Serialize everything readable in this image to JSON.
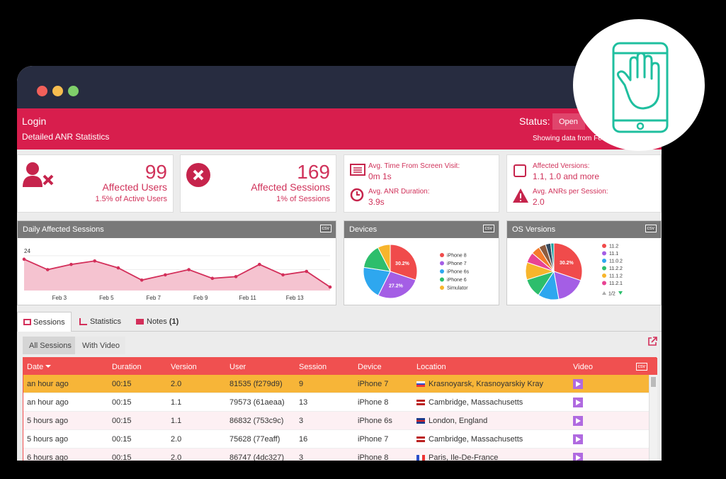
{
  "header": {
    "title": "Login",
    "subtitle": "Detailed ANR Statistics",
    "status_label": "Status:",
    "status": "Open",
    "range": "Showing data from Fe"
  },
  "cards": [
    {
      "value": 99,
      "label": "Affected Users",
      "note": "1.5% of Active Users"
    },
    {
      "value": 169,
      "label": "Affected Sessions",
      "note": "1% of Sessions"
    },
    {
      "items": [
        {
          "label": "Avg. Time From Screen Visit:",
          "value": "0m 1s"
        },
        {
          "label": "Avg. ANR Duration:",
          "value": "3.9s"
        }
      ]
    },
    {
      "items": [
        {
          "label": "Affected Versions:",
          "value": "1.1, 1.0 and more"
        },
        {
          "label": "Avg. ANRs per Session:",
          "value": "2.0"
        }
      ]
    }
  ],
  "export_label": "csv",
  "chart_data": [
    {
      "type": "line",
      "title": "Daily Affected Sessions",
      "categories": [
        null,
        "Feb 3",
        null,
        "Feb 5",
        null,
        "Feb 7",
        null,
        "Feb 9",
        null,
        "Feb 11",
        null,
        "Feb 13",
        null,
        null
      ],
      "values": [
        22,
        16,
        19,
        21,
        17,
        10,
        13,
        16,
        11,
        12,
        19,
        13,
        15,
        6
      ],
      "color": "#d32f5a",
      "ylim": [
        4,
        26
      ],
      "yticks": [
        8,
        16,
        24
      ],
      "grid": true
    },
    {
      "type": "pie",
      "title": "Devices",
      "categories": [
        "iPhone 8",
        "iPhone 7",
        "iPhone 6s",
        "iPhone 6",
        "Simulator"
      ],
      "values": [
        30.2,
        27.2,
        20,
        15,
        7.6
      ],
      "value_labels": [
        "30.2%",
        "27.2%",
        null,
        null,
        null
      ],
      "colors": [
        "#f04b4b",
        "#a45ee5",
        "#2ea7ef",
        "#2dbe6c",
        "#f7b52c"
      ]
    },
    {
      "type": "pie",
      "title": "OS Versions",
      "categories": [
        "11.2",
        "11.1",
        "11.0.2",
        "11.2.2",
        "11.1.2",
        "11.2.1",
        null,
        null,
        null,
        null
      ],
      "values": [
        30.2,
        17,
        12,
        11,
        10,
        6,
        5,
        4,
        3,
        1.8
      ],
      "value_labels": [
        "30.2%",
        null,
        null,
        null,
        null,
        null,
        null,
        null,
        null,
        null
      ],
      "colors": [
        "#f04b4b",
        "#a45ee5",
        "#2ea7ef",
        "#2dbe6c",
        "#f7b52c",
        "#e84393",
        "#f57c2b",
        "#8d5b3e",
        "#34495e",
        "#16a3a3"
      ],
      "legend_page": "1/2"
    }
  ],
  "tabs": [
    {
      "label": "Sessions"
    },
    {
      "label": "Statistics"
    },
    {
      "label": "Notes",
      "count": "(1)"
    }
  ],
  "filters": [
    "All Sessions",
    "With Video"
  ],
  "table": {
    "columns": [
      "Date",
      "Duration",
      "Version",
      "User",
      "Session",
      "Device",
      "Location",
      "Video"
    ],
    "rows": [
      [
        "an hour ago",
        "00:15",
        "2.0",
        "81535 (f279d9)",
        "9",
        "iPhone 7",
        "Krasnoyarsk, Krasnoyarskiy Kray"
      ],
      [
        "an hour ago",
        "00:15",
        "1.1",
        "79573 (61aeaa)",
        "13",
        "iPhone 8",
        "Cambridge, Massachusetts"
      ],
      [
        "5 hours ago",
        "00:15",
        "1.1",
        "86832 (753c9c)",
        "3",
        "iPhone 6s",
        "London, England"
      ],
      [
        "5 hours ago",
        "00:15",
        "2.0",
        "75628 (77eaff)",
        "16",
        "iPhone 7",
        "Cambridge, Massachusetts"
      ],
      [
        "6 hours ago",
        "00:15",
        "2.0",
        "86747 (4dc327)",
        "3",
        "iPhone 8",
        "Paris, Ile-De-France"
      ]
    ]
  }
}
